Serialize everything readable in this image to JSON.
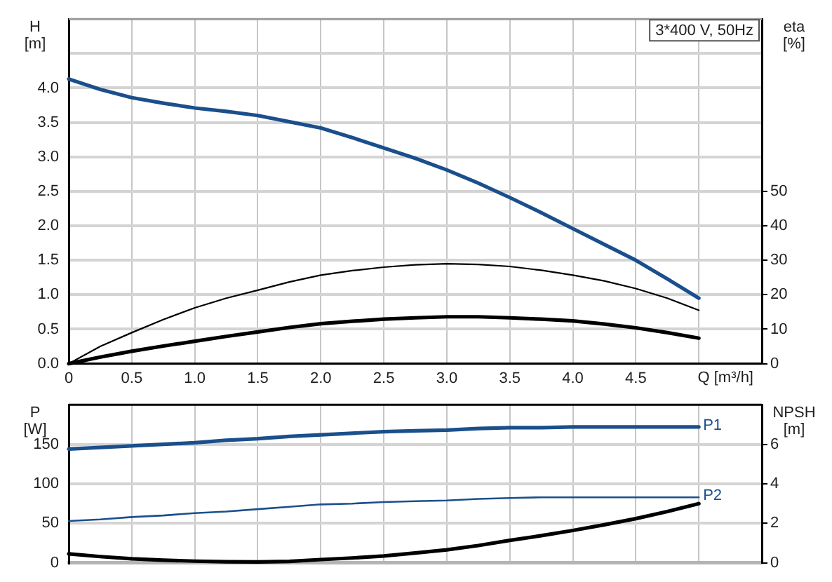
{
  "chart_data": [
    {
      "type": "line",
      "title": "3*400 V, 50Hz",
      "xlabel": "Q [m³/h]",
      "ylabel": "H [m]",
      "y2label": "eta [%]",
      "xlim": [
        0,
        5.5
      ],
      "xticks": [
        0,
        0.5,
        {
          "value": 1,
          "label": "1.0"
        },
        1.5,
        {
          "value": 2,
          "label": "2.0"
        },
        2.5,
        {
          "value": 3,
          "label": "3.0"
        },
        3.5,
        {
          "value": 4,
          "label": "4.0"
        },
        4.5,
        {
          "value": 5,
          "label": null
        }
      ],
      "ylim": [
        0,
        5
      ],
      "yticks": [
        {
          "value": 0,
          "label": "0.0"
        },
        0.5,
        {
          "value": 1,
          "label": "1.0"
        },
        1.5,
        {
          "value": 2,
          "label": "2.0"
        },
        2.5,
        {
          "value": 3,
          "label": "3.0"
        },
        3.5,
        {
          "value": 4,
          "label": "4.0"
        },
        {
          "value": 4.5,
          "label": null
        }
      ],
      "y2lim": [
        0,
        100
      ],
      "y2ticks": [
        0,
        10,
        20,
        30,
        40,
        50
      ],
      "grid": true,
      "marker": "none",
      "x": [
        0,
        0.25,
        0.5,
        0.75,
        1,
        1.25,
        1.5,
        1.75,
        2,
        2.25,
        2.5,
        2.75,
        3,
        3.25,
        3.5,
        3.75,
        4,
        4.25,
        4.5,
        4.75,
        5
      ],
      "series": [
        {
          "color": "#1b4f8c",
          "values": [
            4.13,
            3.98,
            3.86,
            3.78,
            3.71,
            3.66,
            3.6,
            3.51,
            3.42,
            3.28,
            3.13,
            2.98,
            2.81,
            2.62,
            2.41,
            2.19,
            1.96,
            1.73,
            1.5,
            1.23,
            0.95
          ]
        },
        {
          "color": "#000000",
          "axis": "y2",
          "values": [
            0,
            5,
            9,
            12.8,
            16.2,
            19,
            21.3,
            23.7,
            25.7,
            27,
            28,
            28.7,
            29,
            28.8,
            28.2,
            27.1,
            25.7,
            24,
            21.8,
            19,
            15.5
          ]
        },
        {
          "color": "#000000",
          "axis": "y2",
          "values": [
            0,
            1.9,
            3.6,
            5.1,
            6.5,
            7.9,
            9.2,
            10.5,
            11.6,
            12.3,
            12.9,
            13.3,
            13.6,
            13.6,
            13.3,
            12.9,
            12.4,
            11.5,
            10.4,
            9,
            7.4
          ]
        }
      ]
    },
    {
      "type": "line",
      "ylabel": "P [W]",
      "y2label": "NPSH [m]",
      "xlim": [
        0,
        5.5
      ],
      "xticks": [
        0,
        0.5,
        1,
        1.5,
        2,
        2.5,
        3,
        3.5,
        4,
        4.5,
        5
      ],
      "ylim": [
        0,
        200
      ],
      "yticks": [
        0,
        50,
        100,
        150
      ],
      "y2lim": [
        0,
        8
      ],
      "y2ticks": [
        0,
        2,
        4,
        6
      ],
      "tick_labels": "y",
      "grid": true,
      "marker": "none",
      "x": [
        0,
        0.25,
        0.5,
        0.75,
        1,
        1.25,
        1.5,
        1.75,
        2,
        2.25,
        2.5,
        2.75,
        3,
        3.25,
        3.5,
        3.75,
        4,
        4.25,
        4.5,
        4.75,
        5
      ],
      "series": [
        {
          "name": "P1",
          "color": "#1b4f8c",
          "values": [
            144,
            146,
            148,
            150,
            152,
            155,
            157,
            160,
            162,
            164,
            166,
            167,
            168,
            170,
            171,
            171,
            172,
            172,
            172,
            172,
            172
          ]
        },
        {
          "name": "P2",
          "color": "#1b4f8c",
          "values": [
            53,
            55,
            58,
            60,
            63,
            65,
            68,
            71,
            74,
            75,
            77,
            78,
            79,
            81,
            82,
            83,
            83,
            83,
            83,
            83,
            83
          ]
        },
        {
          "color": "#000000",
          "axis": "y2",
          "values": [
            0.46,
            0.32,
            0.21,
            0.14,
            0.09,
            0.06,
            0.05,
            0.08,
            0.17,
            0.25,
            0.35,
            0.5,
            0.66,
            0.88,
            1.14,
            1.38,
            1.64,
            1.93,
            2.24,
            2.6,
            3.0
          ]
        }
      ]
    }
  ]
}
